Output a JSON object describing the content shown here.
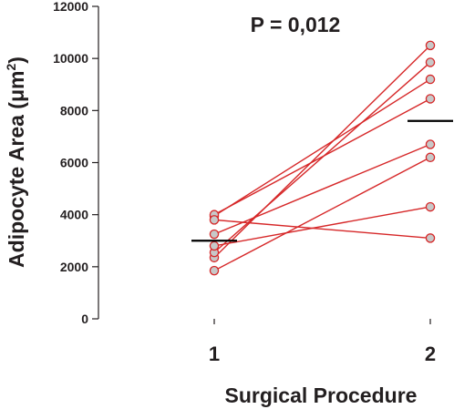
{
  "chart_data": {
    "type": "line",
    "title": "",
    "annotation": "P = 0,012",
    "xlabel": "Surgical Procedure",
    "ylabel_main": "Adipocyte Area (",
    "ylabel_mu": "μm",
    "ylabel_sup": "2",
    "ylabel_close": ")",
    "x_categories": [
      "1",
      "2"
    ],
    "ylim": [
      0,
      12000
    ],
    "yticks": [
      0,
      2000,
      4000,
      6000,
      8000,
      10000,
      12000
    ],
    "ytick_labels": [
      "0",
      "2000",
      "4000",
      "6000",
      "8000",
      "10000",
      "12000"
    ],
    "series": [
      {
        "values": [
          2350,
          10500
        ]
      },
      {
        "values": [
          2550,
          9850
        ]
      },
      {
        "values": [
          3950,
          9200
        ]
      },
      {
        "values": [
          4000,
          8450
        ]
      },
      {
        "values": [
          3250,
          6700
        ]
      },
      {
        "values": [
          1850,
          6200
        ]
      },
      {
        "values": [
          2800,
          4300
        ]
      },
      {
        "values": [
          3800,
          3100
        ]
      }
    ],
    "means": [
      3000,
      7600
    ],
    "colors": {
      "line": "#d62728",
      "marker_fill": "#c8c8c8",
      "marker_edge": "#d62728",
      "axis": "#231f20",
      "mean": "#000000"
    }
  }
}
